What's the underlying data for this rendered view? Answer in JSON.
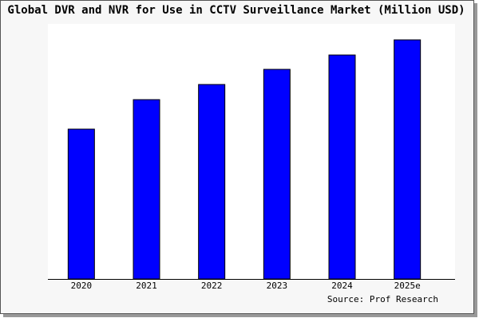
{
  "chart_data": {
    "type": "bar",
    "title": "Global DVR and NVR for Use in CCTV Surveillance Market (Million USD)",
    "categories": [
      "2020",
      "2021",
      "2022",
      "2023",
      "2024",
      "2025e"
    ],
    "values": [
      188,
      225,
      244,
      263,
      281,
      300
    ],
    "color": "#0000ff",
    "ylim": [
      0,
      320
    ],
    "source": "Source: Prof Research"
  }
}
